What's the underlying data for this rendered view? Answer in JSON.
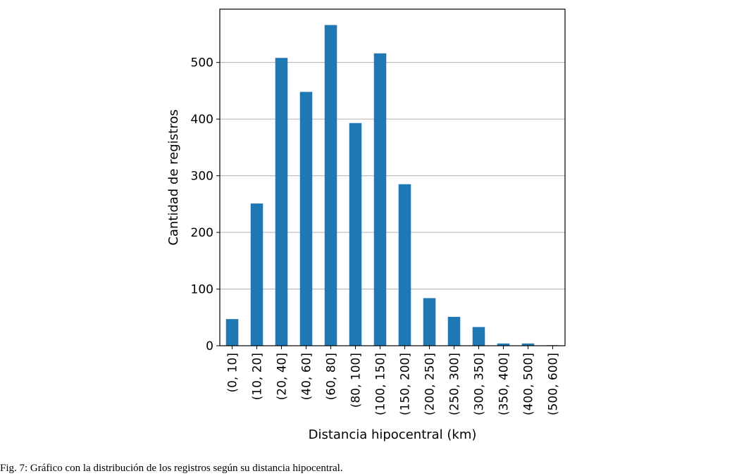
{
  "chart_data": {
    "type": "bar",
    "xlabel": "Distancia hipocentral (km)",
    "ylabel": "Cantidad de registros",
    "categories": [
      "(0, 10]",
      "(10, 20]",
      "(20, 40]",
      "(40, 60]",
      "(60, 80]",
      "(80, 100]",
      "(100, 150]",
      "(150, 200]",
      "(200, 250]",
      "(250, 300]",
      "(300, 350]",
      "(350, 400]",
      "(400, 500]",
      "(500, 600]"
    ],
    "values": [
      47,
      251,
      508,
      448,
      566,
      393,
      516,
      285,
      84,
      51,
      33,
      4,
      4,
      1
    ],
    "yticks": [
      0,
      100,
      200,
      300,
      400,
      500
    ],
    "ylim": [
      0,
      594
    ],
    "grid": "horizontal",
    "bar_color": "#1f77b4",
    "legend": "none"
  },
  "caption": "Fig. 7: Gráfico con la distribución de los registros según su distancia hipocentral."
}
